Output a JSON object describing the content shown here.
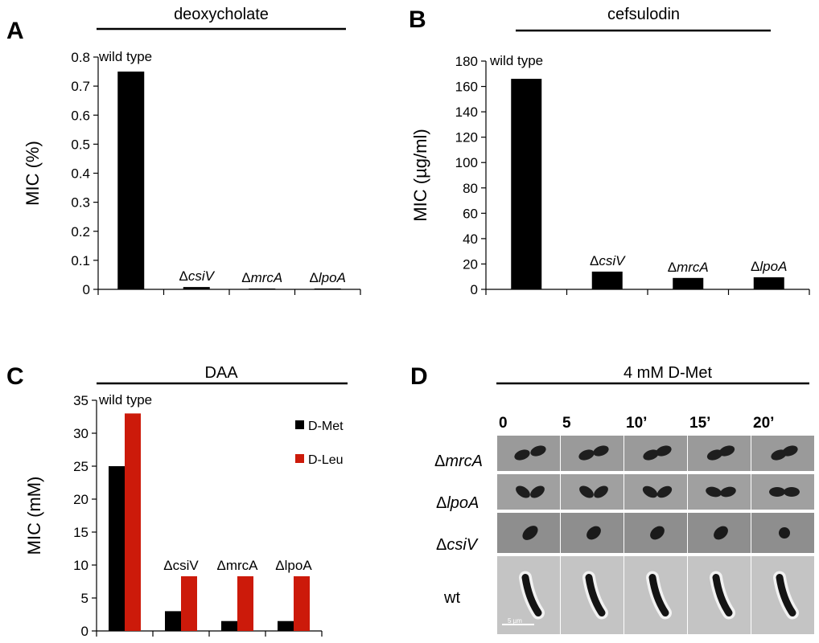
{
  "chart_data": [
    {
      "panel": "A",
      "type": "bar",
      "title": "deoxycholate",
      "ylabel": "MIC (%)",
      "ylim": [
        0,
        0.8
      ],
      "yticks": [
        "0",
        "0.1",
        "0.2",
        "0.3",
        "0.4",
        "0.5",
        "0.6",
        "0.7",
        "0.8"
      ],
      "categories": [
        "wild type",
        "ΔcsiV",
        "ΔmrcA",
        "ΔlpoA"
      ],
      "values": [
        0.75,
        0.008,
        0.003,
        0.003
      ],
      "colors": [
        "#000000"
      ]
    },
    {
      "panel": "B",
      "type": "bar",
      "title": "cefsulodin",
      "ylabel": "MIC (µg/ml)",
      "ylim": [
        0,
        180
      ],
      "yticks": [
        "0",
        "20",
        "40",
        "60",
        "80",
        "100",
        "120",
        "140",
        "160",
        "180"
      ],
      "categories": [
        "wild type",
        "ΔcsiV",
        "ΔmrcA",
        "ΔlpoA"
      ],
      "values": [
        166,
        14,
        9,
        9.5
      ],
      "colors": [
        "#000000"
      ]
    },
    {
      "panel": "C",
      "type": "bar",
      "title": "DAA",
      "ylabel": "MIC (mM)",
      "ylim": [
        0,
        35
      ],
      "yticks": [
        "0",
        "5",
        "10",
        "15",
        "20",
        "25",
        "30",
        "35"
      ],
      "categories": [
        "wild type",
        "ΔcsiV",
        "ΔmrcA",
        "ΔlpoA"
      ],
      "series": [
        {
          "name": "D-Met",
          "color": "#000000",
          "values": [
            25,
            3,
            1.5,
            1.5
          ]
        },
        {
          "name": "D-Leu",
          "color": "#cc1a0a",
          "values": [
            33,
            8.3,
            8.3,
            8.3
          ]
        }
      ],
      "legend": "top-right"
    }
  ],
  "panel_d": {
    "letter": "D",
    "title": "4 mM D-Met",
    "timepoints": [
      "0",
      "5",
      "10’",
      "15’",
      "20’"
    ],
    "time_marks": [
      "’",
      "’"
    ],
    "strains": [
      "ΔmrcA",
      "ΔlpoA",
      "ΔcsiV",
      "wt"
    ],
    "scale_bar": "5 µm"
  }
}
